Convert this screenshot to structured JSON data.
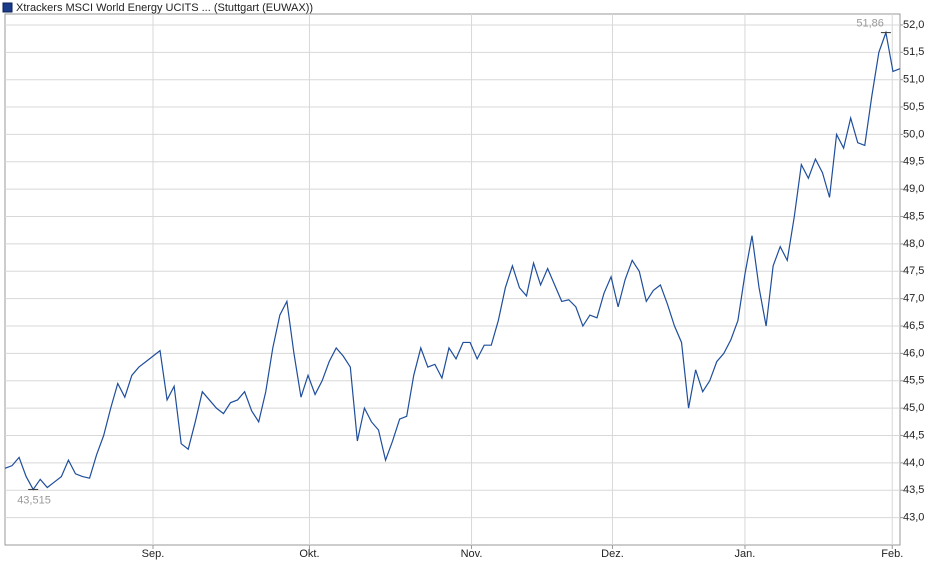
{
  "chart_data": {
    "type": "line",
    "series": [
      {
        "name": "Xtrackers MSCI World Energy UCITS ... (Stuttgart (EUWAX))",
        "color": "#1f4e9c",
        "values": [
          43.9,
          43.95,
          44.1,
          43.75,
          43.515,
          43.7,
          43.55,
          43.65,
          43.75,
          44.05,
          43.8,
          43.75,
          43.72,
          44.15,
          44.5,
          45.0,
          45.45,
          45.2,
          45.6,
          45.75,
          45.85,
          45.95,
          46.05,
          45.15,
          45.4,
          44.35,
          44.25,
          44.75,
          45.3,
          45.15,
          45.0,
          44.9,
          45.1,
          45.15,
          45.3,
          44.95,
          44.75,
          45.3,
          46.1,
          46.7,
          46.95,
          46.0,
          45.2,
          45.6,
          45.25,
          45.5,
          45.85,
          46.1,
          45.95,
          45.75,
          44.4,
          45.0,
          44.75,
          44.6,
          44.05,
          44.4,
          44.8,
          44.85,
          45.6,
          46.1,
          45.75,
          45.8,
          45.55,
          46.1,
          45.9,
          46.2,
          46.2,
          45.9,
          46.15,
          46.15,
          46.6,
          47.2,
          47.6,
          47.2,
          47.05,
          47.65,
          47.25,
          47.55,
          47.25,
          46.95,
          46.98,
          46.85,
          46.5,
          46.7,
          46.65,
          47.1,
          47.4,
          46.85,
          47.35,
          47.7,
          47.5,
          46.95,
          47.15,
          47.25,
          46.9,
          46.5,
          46.2,
          45.0,
          45.7,
          45.3,
          45.5,
          45.85,
          46.0,
          46.25,
          46.6,
          47.45,
          48.15,
          47.2,
          46.5,
          47.6,
          47.95,
          47.7,
          48.5,
          49.45,
          49.2,
          49.55,
          49.3,
          48.85,
          50.0,
          49.75,
          50.3,
          49.85,
          49.8,
          50.7,
          51.5,
          51.86,
          51.15,
          51.2
        ]
      }
    ],
    "max_label": "51,86",
    "min_label": "43,515",
    "xlim": [
      0,
      127
    ],
    "xticks": [
      {
        "value": 21,
        "label": "Sep."
      },
      {
        "value": 43.2,
        "label": "Okt."
      },
      {
        "value": 66.2,
        "label": "Nov."
      },
      {
        "value": 86.2,
        "label": "Dez."
      },
      {
        "value": 105,
        "label": "Jan."
      },
      {
        "value": 125.9,
        "label": "Feb."
      }
    ],
    "ylim": [
      42.5,
      52.2
    ],
    "yticks": [
      {
        "value": 43,
        "label": "43,0"
      },
      {
        "value": 43.5,
        "label": "43,5"
      },
      {
        "value": 44,
        "label": "44,0"
      },
      {
        "value": 44.5,
        "label": "44,5"
      },
      {
        "value": 45,
        "label": "45,0"
      },
      {
        "value": 45.5,
        "label": "45,5"
      },
      {
        "value": 46,
        "label": "46,0"
      },
      {
        "value": 46.5,
        "label": "46,5"
      },
      {
        "value": 47,
        "label": "47,0"
      },
      {
        "value": 47.5,
        "label": "47,5"
      },
      {
        "value": 48,
        "label": "48,0"
      },
      {
        "value": 48.5,
        "label": "48,5"
      },
      {
        "value": 49,
        "label": "49,0"
      },
      {
        "value": 49.5,
        "label": "49,5"
      },
      {
        "value": 50,
        "label": "50,0"
      },
      {
        "value": 50.5,
        "label": "50,5"
      },
      {
        "value": 51,
        "label": "51,0"
      },
      {
        "value": 51.5,
        "label": "51,5"
      },
      {
        "value": 52,
        "label": "52,0"
      }
    ],
    "grid": true
  }
}
